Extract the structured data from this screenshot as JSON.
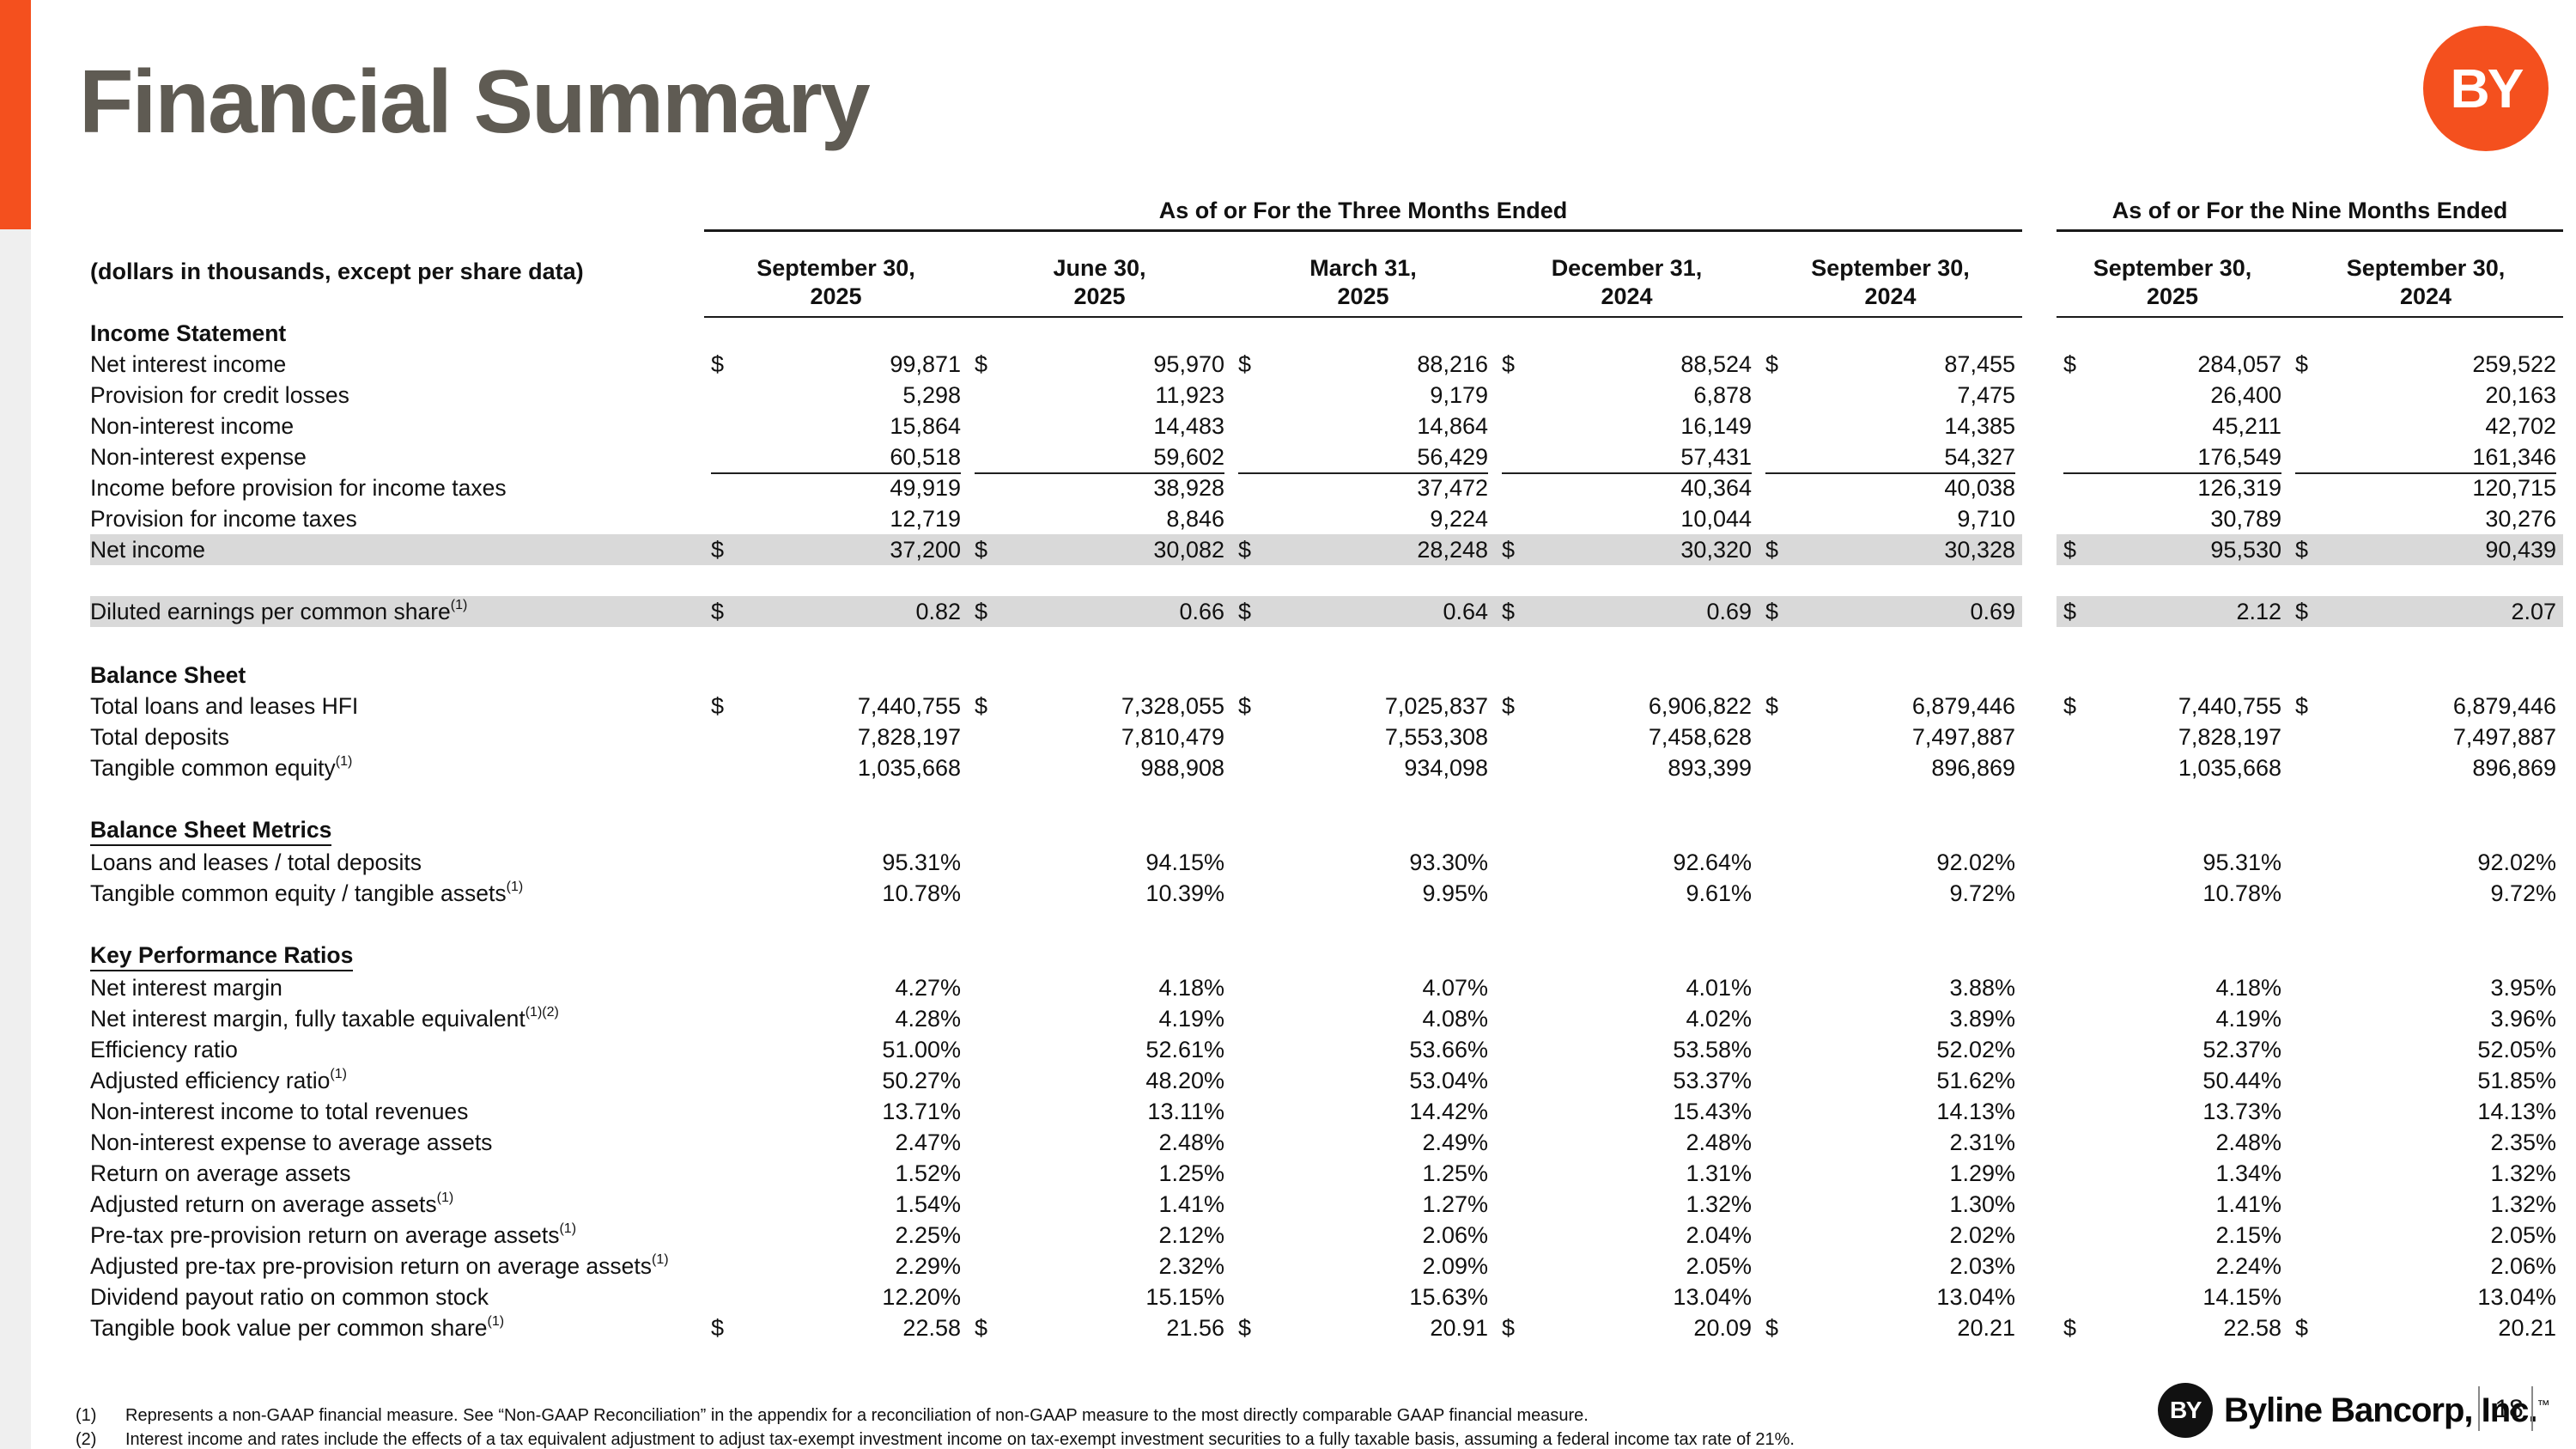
{
  "page": {
    "title": "Financial Summary",
    "logo_text": "BY"
  },
  "colors": {
    "accent_orange": "#F4501E",
    "title_gray": "#5F5B53",
    "row_highlight": "#D9D9D9",
    "left_rail_gray": "#EFEFEF",
    "logo_black": "#111111"
  },
  "table": {
    "subtitle": "(dollars in thousands, except per share data)",
    "currency": "$",
    "group_headers": [
      {
        "label": "As of or For the Three Months Ended",
        "span": 5
      },
      {
        "label": "As of or For the Nine Months Ended",
        "span": 2
      }
    ],
    "columns": [
      {
        "line1": "September 30,",
        "line2": "2025"
      },
      {
        "line1": "June 30,",
        "line2": "2025"
      },
      {
        "line1": "March 31,",
        "line2": "2025"
      },
      {
        "line1": "December 31,",
        "line2": "2024"
      },
      {
        "line1": "September 30,",
        "line2": "2024"
      },
      {
        "line1": "September 30,",
        "line2": "2025"
      },
      {
        "line1": "September 30,",
        "line2": "2024"
      }
    ],
    "sections": [
      {
        "heading": "Income Statement",
        "underline": false,
        "rows": [
          {
            "label": "Net interest income",
            "dollar": true,
            "values": [
              "99,871",
              "95,970",
              "88,216",
              "88,524",
              "87,455",
              "284,057",
              "259,522"
            ]
          },
          {
            "label": "Provision for credit losses",
            "values": [
              "5,298",
              "11,923",
              "9,179",
              "6,878",
              "7,475",
              "26,400",
              "20,163"
            ]
          },
          {
            "label": "Non-interest income",
            "values": [
              "15,864",
              "14,483",
              "14,864",
              "16,149",
              "14,385",
              "45,211",
              "42,702"
            ]
          },
          {
            "label": "Non-interest expense",
            "rule_after": "thin",
            "values": [
              "60,518",
              "59,602",
              "56,429",
              "57,431",
              "54,327",
              "176,549",
              "161,346"
            ]
          },
          {
            "label": "Income before provision for income taxes",
            "values": [
              "49,919",
              "38,928",
              "37,472",
              "40,364",
              "40,038",
              "126,319",
              "120,715"
            ]
          },
          {
            "label": "Provision for income taxes",
            "rule_after": "thick",
            "values": [
              "12,719",
              "8,846",
              "9,224",
              "10,044",
              "9,710",
              "30,789",
              "30,276"
            ]
          },
          {
            "label": "Net income",
            "dollar": true,
            "highlight": true,
            "values": [
              "37,200",
              "30,082",
              "28,248",
              "30,320",
              "30,328",
              "95,530",
              "90,439"
            ]
          },
          {
            "spacer": true
          },
          {
            "label": "Diluted earnings per common share",
            "sup": "(1)",
            "dollar": true,
            "highlight": true,
            "values": [
              "0.82",
              "0.66",
              "0.64",
              "0.69",
              "0.69",
              "2.12",
              "2.07"
            ]
          }
        ]
      },
      {
        "heading": "Balance Sheet",
        "underline": false,
        "rows": [
          {
            "label": "Total loans and leases HFI",
            "dollar": true,
            "values": [
              "7,440,755",
              "7,328,055",
              "7,025,837",
              "6,906,822",
              "6,879,446",
              "7,440,755",
              "6,879,446"
            ]
          },
          {
            "label": "Total deposits",
            "values": [
              "7,828,197",
              "7,810,479",
              "7,553,308",
              "7,458,628",
              "7,497,887",
              "7,828,197",
              "7,497,887"
            ]
          },
          {
            "label": "Tangible common equity",
            "sup": "(1)",
            "values": [
              "1,035,668",
              "988,908",
              "934,098",
              "893,399",
              "896,869",
              "1,035,668",
              "896,869"
            ]
          }
        ]
      },
      {
        "heading": "Balance Sheet Metrics",
        "underline": true,
        "rows": [
          {
            "label": "Loans and leases / total deposits",
            "values": [
              "95.31%",
              "94.15%",
              "93.30%",
              "92.64%",
              "92.02%",
              "95.31%",
              "92.02%"
            ]
          },
          {
            "label": "Tangible common equity / tangible assets",
            "sup": "(1)",
            "values": [
              "10.78%",
              "10.39%",
              "9.95%",
              "9.61%",
              "9.72%",
              "10.78%",
              "9.72%"
            ]
          }
        ]
      },
      {
        "heading": "Key Performance Ratios",
        "underline": true,
        "rows": [
          {
            "label": "Net interest margin",
            "values": [
              "4.27%",
              "4.18%",
              "4.07%",
              "4.01%",
              "3.88%",
              "4.18%",
              "3.95%"
            ]
          },
          {
            "label": "Net interest margin, fully taxable equivalent ",
            "sup": "(1)(2)",
            "values": [
              "4.28%",
              "4.19%",
              "4.08%",
              "4.02%",
              "3.89%",
              "4.19%",
              "3.96%"
            ]
          },
          {
            "label": "Efficiency ratio",
            "values": [
              "51.00%",
              "52.61%",
              "53.66%",
              "53.58%",
              "52.02%",
              "52.37%",
              "52.05%"
            ]
          },
          {
            "label": "Adjusted efficiency ratio",
            "sup": "(1)",
            "values": [
              "50.27%",
              "48.20%",
              "53.04%",
              "53.37%",
              "51.62%",
              "50.44%",
              "51.85%"
            ]
          },
          {
            "label": "Non-interest income to total revenues",
            "values": [
              "13.71%",
              "13.11%",
              "14.42%",
              "15.43%",
              "14.13%",
              "13.73%",
              "14.13%"
            ]
          },
          {
            "label": "Non-interest expense to average assets",
            "values": [
              "2.47%",
              "2.48%",
              "2.49%",
              "2.48%",
              "2.31%",
              "2.48%",
              "2.35%"
            ]
          },
          {
            "label": "Return on average assets",
            "values": [
              "1.52%",
              "1.25%",
              "1.25%",
              "1.31%",
              "1.29%",
              "1.34%",
              "1.32%"
            ]
          },
          {
            "label": "Adjusted return on average assets",
            "sup": "(1)",
            "values": [
              "1.54%",
              "1.41%",
              "1.27%",
              "1.32%",
              "1.30%",
              "1.41%",
              "1.32%"
            ]
          },
          {
            "label": "Pre-tax pre-provision return on average assets ",
            "sup": "(1)",
            "values": [
              "2.25%",
              "2.12%",
              "2.06%",
              "2.04%",
              "2.02%",
              "2.15%",
              "2.05%"
            ]
          },
          {
            "label": "Adjusted pre-tax pre-provision return on average assets ",
            "sup": "(1)",
            "values": [
              "2.29%",
              "2.32%",
              "2.09%",
              "2.05%",
              "2.03%",
              "2.24%",
              "2.06%"
            ]
          },
          {
            "label": "Dividend payout ratio on common stock",
            "values": [
              "12.20%",
              "15.15%",
              "15.63%",
              "13.04%",
              "13.04%",
              "14.15%",
              "13.04%"
            ]
          },
          {
            "label": "Tangible book value per common share",
            "sup": "(1)",
            "dollar": true,
            "values": [
              "22.58",
              "21.56",
              "20.91",
              "20.09",
              "20.21",
              "22.58",
              "20.21"
            ]
          }
        ]
      }
    ]
  },
  "footnotes": [
    {
      "marker": "(1)",
      "text": "Represents a non-GAAP financial measure.  See “Non-GAAP Reconciliation” in the appendix for a reconciliation of non-GAAP measure to the most directly comparable GAAP financial measure."
    },
    {
      "marker": "(2)",
      "text": "Interest income and rates include the effects of a tax equivalent adjustment to adjust tax-exempt investment income on tax-exempt investment securities to a fully taxable basis, assuming a federal income tax rate of 21%."
    }
  ],
  "footer": {
    "brand": "Byline Bancorp, Inc.",
    "tm": "™",
    "page_number": "18"
  }
}
